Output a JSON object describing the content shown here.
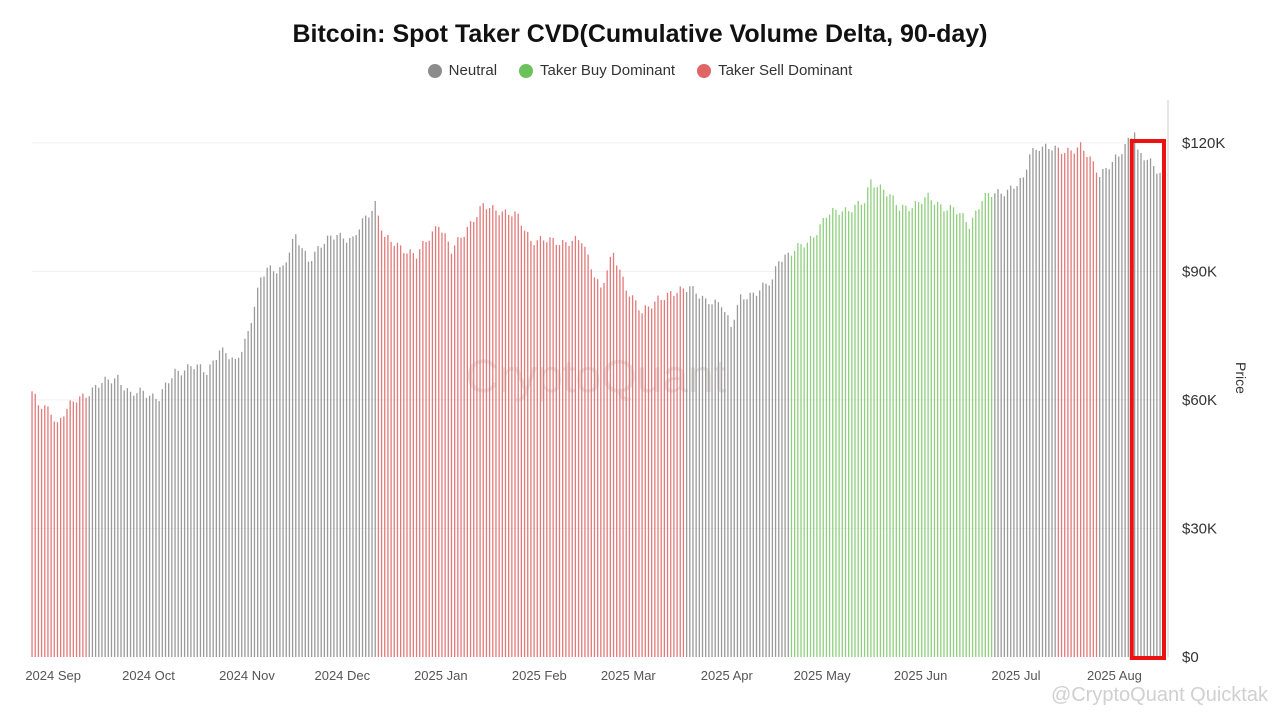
{
  "colors": {
    "neutral": "#9a9a9a",
    "buy": "#8fcf7e",
    "sell": "#e17a7a",
    "highlight": "#ee1111"
  },
  "watermark": "CryptoQuant",
  "footer": "@CryptoQuant Quicktak",
  "chart_data": {
    "type": "bar",
    "title": "Bitcoin: Spot Taker CVD(Cumulative Volume Delta, 90-day)",
    "legend": [
      {
        "name": "Neutral",
        "color": "#8c8c8c"
      },
      {
        "name": "Taker Buy Dominant",
        "color": "#6cc25a"
      },
      {
        "name": "Taker Sell Dominant",
        "color": "#e06666"
      }
    ],
    "ylabel": "Price",
    "ylim": [
      0,
      130000
    ],
    "yticks": [
      {
        "value": 0,
        "label": "$0"
      },
      {
        "value": 30000,
        "label": "$30K"
      },
      {
        "value": 60000,
        "label": "$60K"
      },
      {
        "value": 90000,
        "label": "$90K"
      },
      {
        "value": 120000,
        "label": "$120K"
      }
    ],
    "x_start": "2024-08-31",
    "x_end": "2025-08-21",
    "xticks": [
      {
        "date": "2024-09-01",
        "label": "2024 Sep"
      },
      {
        "date": "2024-10-01",
        "label": "2024 Oct"
      },
      {
        "date": "2024-11-01",
        "label": "2024 Nov"
      },
      {
        "date": "2024-12-01",
        "label": "2024 Dec"
      },
      {
        "date": "2025-01-01",
        "label": "2025 Jan"
      },
      {
        "date": "2025-02-01",
        "label": "2025 Feb"
      },
      {
        "date": "2025-03-01",
        "label": "2025 Mar"
      },
      {
        "date": "2025-04-01",
        "label": "2025 Apr"
      },
      {
        "date": "2025-05-01",
        "label": "2025 May"
      },
      {
        "date": "2025-06-01",
        "label": "2025 Jun"
      },
      {
        "date": "2025-07-01",
        "label": "2025 Jul"
      },
      {
        "date": "2025-08-01",
        "label": "2025 Aug"
      }
    ],
    "price_points": [
      [
        "2024-08-31",
        62000
      ],
      [
        "2024-09-02",
        58500
      ],
      [
        "2024-09-06",
        57500
      ],
      [
        "2024-09-08",
        54500
      ],
      [
        "2024-09-10",
        57000
      ],
      [
        "2024-09-14",
        60000
      ],
      [
        "2024-09-20",
        63000
      ],
      [
        "2024-09-27",
        65500
      ],
      [
        "2024-10-01",
        61000
      ],
      [
        "2024-10-05",
        62000
      ],
      [
        "2024-10-10",
        60500
      ],
      [
        "2024-10-15",
        66500
      ],
      [
        "2024-10-20",
        68000
      ],
      [
        "2024-10-25",
        66500
      ],
      [
        "2024-10-29",
        72000
      ],
      [
        "2024-11-03",
        68500
      ],
      [
        "2024-11-07",
        76000
      ],
      [
        "2024-11-11",
        88000
      ],
      [
        "2024-11-13",
        90500
      ],
      [
        "2024-11-18",
        91000
      ],
      [
        "2024-11-22",
        98000
      ],
      [
        "2024-11-26",
        93000
      ],
      [
        "2024-12-01",
        96500
      ],
      [
        "2024-12-05",
        99000
      ],
      [
        "2024-12-10",
        97000
      ],
      [
        "2024-12-13",
        101500
      ],
      [
        "2024-12-17",
        106000
      ],
      [
        "2024-12-20",
        97500
      ],
      [
        "2024-12-26",
        95500
      ],
      [
        "2024-12-30",
        93500
      ],
      [
        "2025-01-06",
        101500
      ],
      [
        "2025-01-10",
        94500
      ],
      [
        "2025-01-15",
        100500
      ],
      [
        "2025-01-20",
        105000
      ],
      [
        "2025-01-25",
        104500
      ],
      [
        "2025-01-31",
        102500
      ],
      [
        "2025-02-04",
        97500
      ],
      [
        "2025-02-10",
        97000
      ],
      [
        "2025-02-20",
        97000
      ],
      [
        "2025-02-26",
        86000
      ],
      [
        "2025-03-02",
        94000
      ],
      [
        "2025-03-06",
        86500
      ],
      [
        "2025-03-11",
        80000
      ],
      [
        "2025-03-16",
        84000
      ],
      [
        "2025-03-21",
        84500
      ],
      [
        "2025-03-26",
        87000
      ],
      [
        "2025-03-31",
        82500
      ],
      [
        "2025-04-05",
        83000
      ],
      [
        "2025-04-08",
        77000
      ],
      [
        "2025-04-11",
        83500
      ],
      [
        "2025-04-21",
        87500
      ],
      [
        "2025-04-23",
        93000
      ],
      [
        "2025-05-02",
        96500
      ],
      [
        "2025-05-08",
        103000
      ],
      [
        "2025-05-12",
        104000
      ],
      [
        "2025-05-20",
        106000
      ],
      [
        "2025-05-22",
        111000
      ],
      [
        "2025-05-26",
        109500
      ],
      [
        "2025-05-31",
        104500
      ],
      [
        "2025-06-09",
        107000
      ],
      [
        "2025-06-13",
        105500
      ],
      [
        "2025-06-17",
        104500
      ],
      [
        "2025-06-22",
        101000
      ],
      [
        "2025-06-26",
        107000
      ],
      [
        "2025-07-02",
        108500
      ],
      [
        "2025-07-09",
        111000
      ],
      [
        "2025-07-11",
        117500
      ],
      [
        "2025-07-14",
        119500
      ],
      [
        "2025-07-20",
        118000
      ],
      [
        "2025-07-27",
        119000
      ],
      [
        "2025-08-02",
        113000
      ],
      [
        "2025-08-08",
        116500
      ],
      [
        "2025-08-13",
        123500
      ],
      [
        "2025-08-14",
        118000
      ],
      [
        "2025-08-18",
        115000
      ],
      [
        "2025-08-21",
        113000
      ]
    ],
    "regimes": [
      {
        "from": "2024-08-31",
        "to": "2024-09-17",
        "state": "sell"
      },
      {
        "from": "2024-09-18",
        "to": "2024-12-17",
        "state": "neutral"
      },
      {
        "from": "2024-12-18",
        "to": "2025-03-24",
        "state": "sell"
      },
      {
        "from": "2025-03-25",
        "to": "2025-04-26",
        "state": "neutral"
      },
      {
        "from": "2025-04-27",
        "to": "2025-06-29",
        "state": "buy"
      },
      {
        "from": "2025-06-30",
        "to": "2025-07-19",
        "state": "neutral"
      },
      {
        "from": "2025-07-20",
        "to": "2025-08-01",
        "state": "sell"
      },
      {
        "from": "2025-08-02",
        "to": "2025-08-21",
        "state": "neutral"
      }
    ],
    "highlight_range": [
      "2025-08-14",
      "2025-08-21"
    ]
  }
}
